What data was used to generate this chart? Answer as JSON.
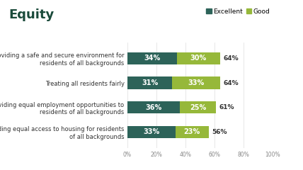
{
  "title": "Equity",
  "title_color": "#1a4a3a",
  "title_fontsize": 13,
  "background_color": "#ffffff",
  "categories": [
    "Providing a safe and secure environment for\nresidents of all backgrounds",
    "Treating all residents fairly",
    "Providing equal employment opportunities to\nresidents of all backgrounds",
    "Providing equal access to housing for residents\nof all backgrounds"
  ],
  "excellent_values": [
    34,
    31,
    36,
    33
  ],
  "good_values": [
    30,
    33,
    25,
    23
  ],
  "total_labels": [
    "64%",
    "64%",
    "61%",
    "56%"
  ],
  "excellent_color": "#2d6359",
  "good_color": "#96b83a",
  "bar_text_color": "#ffffff",
  "legend_labels": [
    "Excellent",
    "Good"
  ],
  "xlim": [
    0,
    100
  ],
  "xtick_labels": [
    "0%",
    "20%",
    "40%",
    "60%",
    "80%",
    "100%"
  ],
  "bar_height": 0.5,
  "fontsize_bars": 7,
  "fontsize_labels": 6,
  "fontsize_ticks": 5.5,
  "fontsize_legend": 6.5,
  "fontsize_total": 6.5
}
